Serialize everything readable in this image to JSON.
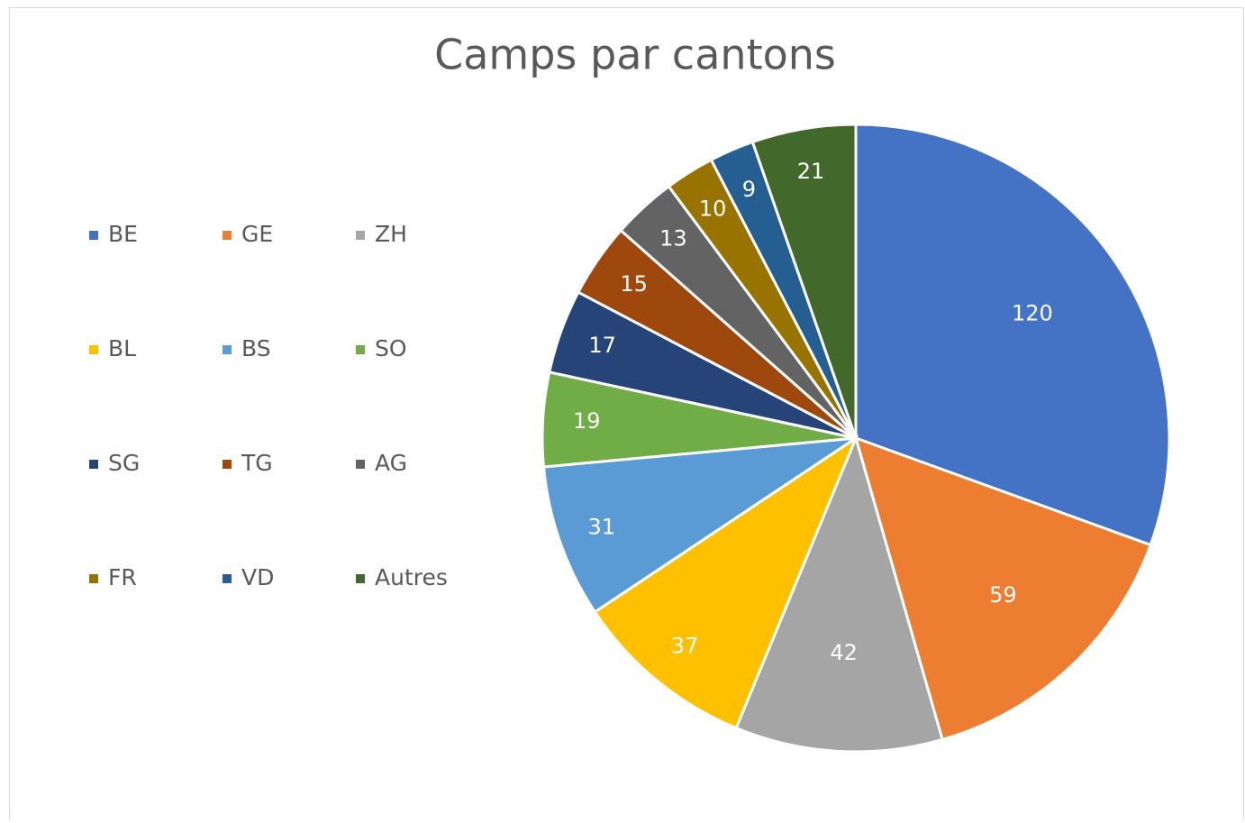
{
  "chart_data": {
    "type": "pie",
    "title": "Camps par cantons",
    "categories": [
      "BE",
      "GE",
      "ZH",
      "BL",
      "BS",
      "SO",
      "SG",
      "TG",
      "AG",
      "FR",
      "VD",
      "Autres"
    ],
    "values": [
      120,
      59,
      42,
      37,
      31,
      19,
      17,
      15,
      13,
      10,
      9,
      21
    ],
    "colors": [
      "#4472c4",
      "#ed7d31",
      "#a5a5a5",
      "#ffc000",
      "#5b9bd5",
      "#70ad47",
      "#264478",
      "#9e480e",
      "#636363",
      "#997300",
      "#255e91",
      "#43682b"
    ],
    "legend": "left"
  }
}
